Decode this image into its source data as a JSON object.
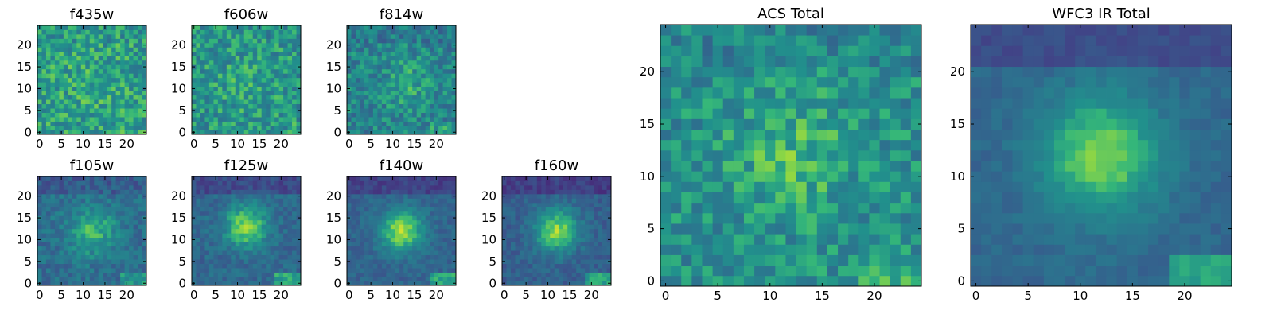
{
  "chart_data": [
    {
      "type": "heatmap",
      "title": "f435w",
      "grid_size": [
        25,
        25
      ],
      "xlim": [
        0,
        24
      ],
      "ylim": [
        0,
        24
      ],
      "xticks": [
        0,
        5,
        10,
        15,
        20
      ],
      "yticks": [
        0,
        5,
        10,
        15,
        20
      ],
      "colormap": "viridis",
      "source_profile": {
        "peak": [
          12,
          12
        ],
        "spread": 5,
        "amplitude": 0.05,
        "noise": 0.35,
        "base": 0.65
      }
    },
    {
      "type": "heatmap",
      "title": "f606w",
      "grid_size": [
        25,
        25
      ],
      "xlim": [
        0,
        24
      ],
      "ylim": [
        0,
        24
      ],
      "xticks": [
        0,
        5,
        10,
        15,
        20
      ],
      "yticks": [
        0,
        5,
        10,
        15,
        20
      ],
      "colormap": "viridis",
      "source_profile": {
        "peak": [
          12,
          12
        ],
        "spread": 5,
        "amplitude": 0.05,
        "noise": 0.35,
        "base": 0.62
      }
    },
    {
      "type": "heatmap",
      "title": "f814w",
      "grid_size": [
        25,
        25
      ],
      "xlim": [
        0,
        24
      ],
      "ylim": [
        0,
        24
      ],
      "xticks": [
        0,
        5,
        10,
        15,
        20
      ],
      "yticks": [
        0,
        5,
        10,
        15,
        20
      ],
      "colormap": "viridis",
      "source_profile": {
        "peak": [
          13,
          11
        ],
        "spread": 4,
        "amplitude": 0.15,
        "noise": 0.32,
        "base": 0.55
      }
    },
    {
      "type": "heatmap",
      "title": "f105w",
      "grid_size": [
        25,
        25
      ],
      "xlim": [
        0,
        24
      ],
      "ylim": [
        0,
        24
      ],
      "xticks": [
        0,
        5,
        10,
        15,
        20
      ],
      "yticks": [
        0,
        5,
        10,
        15,
        20
      ],
      "colormap": "viridis",
      "source_profile": {
        "peak": [
          12,
          12
        ],
        "spread": 4,
        "amplitude": 0.3,
        "noise": 0.22,
        "base": 0.45
      }
    },
    {
      "type": "heatmap",
      "title": "f125w",
      "grid_size": [
        25,
        25
      ],
      "xlim": [
        0,
        24
      ],
      "ylim": [
        0,
        24
      ],
      "xticks": [
        0,
        5,
        10,
        15,
        20
      ],
      "yticks": [
        0,
        5,
        10,
        15,
        20
      ],
      "colormap": "viridis",
      "source_profile": {
        "peak": [
          12,
          13
        ],
        "spread": 3.5,
        "amplitude": 0.45,
        "noise": 0.18,
        "base": 0.42
      }
    },
    {
      "type": "heatmap",
      "title": "f140w",
      "grid_size": [
        25,
        25
      ],
      "xlim": [
        0,
        24
      ],
      "ylim": [
        0,
        24
      ],
      "xticks": [
        0,
        5,
        10,
        15,
        20
      ],
      "yticks": [
        0,
        5,
        10,
        15,
        20
      ],
      "colormap": "viridis",
      "source_profile": {
        "peak": [
          12,
          12
        ],
        "spread": 3.5,
        "amplitude": 0.5,
        "noise": 0.15,
        "base": 0.4
      }
    },
    {
      "type": "heatmap",
      "title": "f160w",
      "grid_size": [
        25,
        25
      ],
      "xlim": [
        0,
        24
      ],
      "ylim": [
        0,
        24
      ],
      "xticks": [
        0,
        5,
        10,
        15,
        20
      ],
      "yticks": [
        0,
        5,
        10,
        15,
        20
      ],
      "colormap": "viridis",
      "source_profile": {
        "peak": [
          12,
          12
        ],
        "spread": 3.5,
        "amplitude": 0.5,
        "noise": 0.16,
        "base": 0.38
      }
    },
    {
      "type": "heatmap",
      "title": "ACS Total",
      "grid_size": [
        25,
        25
      ],
      "xlim": [
        0,
        24
      ],
      "ylim": [
        0,
        24
      ],
      "xticks": [
        0,
        5,
        10,
        15,
        20
      ],
      "yticks": [
        0,
        5,
        10,
        15,
        20
      ],
      "colormap": "viridis",
      "source_profile": {
        "peak": [
          12,
          12
        ],
        "spread": 4,
        "amplitude": 0.15,
        "noise": 0.3,
        "base": 0.6
      }
    },
    {
      "type": "heatmap",
      "title": "WFC3 IR Total",
      "grid_size": [
        25,
        25
      ],
      "xlim": [
        0,
        24
      ],
      "ylim": [
        0,
        24
      ],
      "xticks": [
        0,
        5,
        10,
        15,
        20
      ],
      "yticks": [
        0,
        5,
        10,
        15,
        20
      ],
      "colormap": "viridis",
      "source_profile": {
        "peak": [
          12,
          12
        ],
        "spread": 4,
        "amplitude": 0.45,
        "noise": 0.1,
        "base": 0.42
      }
    }
  ]
}
